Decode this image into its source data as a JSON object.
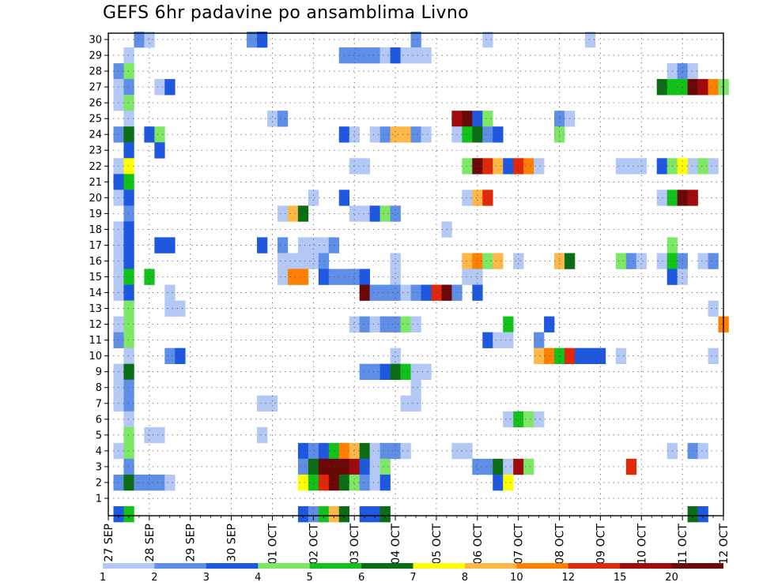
{
  "chart_data": {
    "type": "heatmap",
    "title": "GEFS 6hr padavine po ansamblima Livno",
    "xlabel": "",
    "ylabel": "",
    "x_tick_labels": [
      "27 SEP",
      "28 SEP",
      "29 SEP",
      "30 SEP",
      "01 OCT",
      "02 OCT",
      "03 OCT",
      "04 OCT",
      "05 OCT",
      "06 OCT",
      "07 OCT",
      "08 OCT",
      "09 OCT",
      "10 OCT",
      "11 OCT",
      "12 OCT"
    ],
    "y_tick_labels": [
      "1",
      "2",
      "3",
      "4",
      "5",
      "6",
      "7",
      "8",
      "9",
      "10",
      "11",
      "12",
      "13",
      "14",
      "15",
      "16",
      "17",
      "18",
      "19",
      "20",
      "21",
      "22",
      "23",
      "24",
      "25",
      "26",
      "27",
      "28",
      "29",
      "30"
    ],
    "time_step": "6hr",
    "x_range_steps": [
      0,
      60
    ],
    "y_range": [
      0,
      30
    ],
    "grid": true,
    "colorbar": {
      "levels": [
        "1",
        "2",
        "3",
        "4",
        "5",
        "6",
        "7",
        "8",
        "10",
        "12",
        "15",
        "20"
      ],
      "colors": [
        "#b3c8f5",
        "#5f8ee6",
        "#1e57e0",
        "#7ee866",
        "#12c21a",
        "#0c6e14",
        "#ffff00",
        "#ffb748",
        "#ff7f00",
        "#e0280a",
        "#a00a0a",
        "#6a0808"
      ]
    },
    "cells": [
      [
        30,
        3,
        1
      ],
      [
        30,
        4,
        0
      ],
      [
        30,
        14,
        1
      ],
      [
        30,
        15,
        2
      ],
      [
        30,
        30,
        1
      ],
      [
        30,
        37,
        0
      ],
      [
        30,
        47,
        0
      ],
      [
        29,
        2,
        0
      ],
      [
        29,
        23,
        1
      ],
      [
        29,
        24,
        1
      ],
      [
        29,
        25,
        1
      ],
      [
        29,
        26,
        1
      ],
      [
        29,
        27,
        0
      ],
      [
        29,
        28,
        2
      ],
      [
        29,
        29,
        0
      ],
      [
        29,
        30,
        0
      ],
      [
        29,
        31,
        0
      ],
      [
        28,
        1,
        1
      ],
      [
        28,
        2,
        3
      ],
      [
        28,
        55,
        0
      ],
      [
        28,
        56,
        1
      ],
      [
        28,
        57,
        0
      ],
      [
        27,
        1,
        0
      ],
      [
        27,
        2,
        1
      ],
      [
        27,
        5,
        0
      ],
      [
        27,
        6,
        2
      ],
      [
        27,
        54,
        5
      ],
      [
        27,
        55,
        4
      ],
      [
        27,
        56,
        4
      ],
      [
        27,
        57,
        11
      ],
      [
        27,
        58,
        10
      ],
      [
        27,
        59,
        8
      ],
      [
        27,
        60,
        3
      ],
      [
        26,
        1,
        0
      ],
      [
        26,
        2,
        3
      ],
      [
        25,
        2,
        0
      ],
      [
        25,
        16,
        0
      ],
      [
        25,
        17,
        1
      ],
      [
        25,
        34,
        10
      ],
      [
        25,
        35,
        11
      ],
      [
        25,
        36,
        2
      ],
      [
        25,
        37,
        3
      ],
      [
        25,
        44,
        1
      ],
      [
        25,
        45,
        0
      ],
      [
        24,
        1,
        1
      ],
      [
        24,
        2,
        5
      ],
      [
        24,
        4,
        2
      ],
      [
        24,
        5,
        3
      ],
      [
        24,
        23,
        2
      ],
      [
        24,
        24,
        0
      ],
      [
        24,
        26,
        0
      ],
      [
        24,
        27,
        1
      ],
      [
        24,
        28,
        7
      ],
      [
        24,
        29,
        7
      ],
      [
        24,
        30,
        1
      ],
      [
        24,
        31,
        0
      ],
      [
        24,
        34,
        0
      ],
      [
        24,
        35,
        4
      ],
      [
        24,
        36,
        5
      ],
      [
        24,
        37,
        1
      ],
      [
        24,
        38,
        2
      ],
      [
        24,
        44,
        3
      ],
      [
        23,
        2,
        2
      ],
      [
        23,
        5,
        2
      ],
      [
        22,
        1,
        0
      ],
      [
        22,
        2,
        6
      ],
      [
        22,
        24,
        0
      ],
      [
        22,
        25,
        0
      ],
      [
        22,
        35,
        3
      ],
      [
        22,
        36,
        11
      ],
      [
        22,
        37,
        9
      ],
      [
        22,
        38,
        7
      ],
      [
        22,
        39,
        2
      ],
      [
        22,
        40,
        9
      ],
      [
        22,
        41,
        8
      ],
      [
        22,
        42,
        0
      ],
      [
        22,
        50,
        0
      ],
      [
        22,
        51,
        0
      ],
      [
        22,
        52,
        0
      ],
      [
        22,
        54,
        2
      ],
      [
        22,
        55,
        3
      ],
      [
        22,
        56,
        6
      ],
      [
        22,
        57,
        0
      ],
      [
        22,
        58,
        3
      ],
      [
        22,
        59,
        0
      ],
      [
        21,
        1,
        2
      ],
      [
        21,
        2,
        4
      ],
      [
        20,
        1,
        0
      ],
      [
        20,
        2,
        2
      ],
      [
        20,
        20,
        0
      ],
      [
        20,
        23,
        2
      ],
      [
        20,
        35,
        0
      ],
      [
        20,
        36,
        7
      ],
      [
        20,
        37,
        9
      ],
      [
        20,
        54,
        0
      ],
      [
        20,
        55,
        4
      ],
      [
        20,
        56,
        11
      ],
      [
        20,
        57,
        10
      ],
      [
        19,
        2,
        1
      ],
      [
        19,
        17,
        0
      ],
      [
        19,
        18,
        7
      ],
      [
        19,
        19,
        5
      ],
      [
        19,
        24,
        0
      ],
      [
        19,
        25,
        0
      ],
      [
        19,
        26,
        2
      ],
      [
        19,
        27,
        3
      ],
      [
        19,
        28,
        1
      ],
      [
        18,
        1,
        0
      ],
      [
        18,
        2,
        2
      ],
      [
        18,
        33,
        0
      ],
      [
        17,
        1,
        0
      ],
      [
        17,
        2,
        2
      ],
      [
        17,
        5,
        2
      ],
      [
        17,
        6,
        2
      ],
      [
        17,
        15,
        2
      ],
      [
        17,
        17,
        1
      ],
      [
        17,
        19,
        0
      ],
      [
        17,
        20,
        0
      ],
      [
        17,
        21,
        0
      ],
      [
        17,
        22,
        1
      ],
      [
        17,
        55,
        3
      ],
      [
        16,
        1,
        0
      ],
      [
        16,
        2,
        2
      ],
      [
        16,
        17,
        0
      ],
      [
        16,
        18,
        0
      ],
      [
        16,
        19,
        0
      ],
      [
        16,
        20,
        0
      ],
      [
        16,
        21,
        1
      ],
      [
        16,
        28,
        0
      ],
      [
        16,
        35,
        7
      ],
      [
        16,
        36,
        8
      ],
      [
        16,
        37,
        3
      ],
      [
        16,
        38,
        7
      ],
      [
        16,
        40,
        0
      ],
      [
        16,
        44,
        7
      ],
      [
        16,
        45,
        5
      ],
      [
        16,
        50,
        3
      ],
      [
        16,
        51,
        1
      ],
      [
        16,
        52,
        0
      ],
      [
        16,
        54,
        0
      ],
      [
        16,
        55,
        4
      ],
      [
        16,
        56,
        1
      ],
      [
        16,
        58,
        0
      ],
      [
        16,
        59,
        1
      ],
      [
        15,
        1,
        0
      ],
      [
        15,
        2,
        4
      ],
      [
        15,
        4,
        4
      ],
      [
        15,
        17,
        0
      ],
      [
        15,
        18,
        8
      ],
      [
        15,
        19,
        8
      ],
      [
        15,
        21,
        2
      ],
      [
        15,
        22,
        1
      ],
      [
        15,
        23,
        1
      ],
      [
        15,
        24,
        1
      ],
      [
        15,
        25,
        2
      ],
      [
        15,
        28,
        0
      ],
      [
        15,
        35,
        0
      ],
      [
        15,
        36,
        0
      ],
      [
        15,
        55,
        2
      ],
      [
        15,
        56,
        0
      ],
      [
        14,
        1,
        0
      ],
      [
        14,
        2,
        2
      ],
      [
        14,
        6,
        0
      ],
      [
        14,
        25,
        11
      ],
      [
        14,
        26,
        1
      ],
      [
        14,
        27,
        1
      ],
      [
        14,
        28,
        1
      ],
      [
        14,
        29,
        0
      ],
      [
        14,
        30,
        1
      ],
      [
        14,
        31,
        2
      ],
      [
        14,
        32,
        9
      ],
      [
        14,
        33,
        11
      ],
      [
        14,
        34,
        1
      ],
      [
        14,
        36,
        2
      ],
      [
        13,
        2,
        3
      ],
      [
        13,
        6,
        0
      ],
      [
        13,
        7,
        0
      ],
      [
        13,
        59,
        0
      ],
      [
        12,
        1,
        0
      ],
      [
        12,
        2,
        3
      ],
      [
        12,
        24,
        0
      ],
      [
        12,
        25,
        1
      ],
      [
        12,
        26,
        0
      ],
      [
        12,
        27,
        1
      ],
      [
        12,
        28,
        1
      ],
      [
        12,
        29,
        3
      ],
      [
        12,
        30,
        0
      ],
      [
        12,
        39,
        4
      ],
      [
        12,
        43,
        2
      ],
      [
        12,
        60,
        8
      ],
      [
        11,
        1,
        1
      ],
      [
        11,
        2,
        3
      ],
      [
        11,
        37,
        2
      ],
      [
        11,
        38,
        0
      ],
      [
        11,
        39,
        0
      ],
      [
        11,
        42,
        1
      ],
      [
        10,
        2,
        0
      ],
      [
        10,
        6,
        1
      ],
      [
        10,
        7,
        2
      ],
      [
        10,
        28,
        0
      ],
      [
        10,
        42,
        7
      ],
      [
        10,
        43,
        8
      ],
      [
        10,
        44,
        4
      ],
      [
        10,
        45,
        9
      ],
      [
        10,
        46,
        2
      ],
      [
        10,
        47,
        2
      ],
      [
        10,
        48,
        2
      ],
      [
        10,
        50,
        0
      ],
      [
        10,
        59,
        0
      ],
      [
        9,
        1,
        0
      ],
      [
        9,
        2,
        5
      ],
      [
        9,
        25,
        1
      ],
      [
        9,
        26,
        1
      ],
      [
        9,
        27,
        2
      ],
      [
        9,
        28,
        5
      ],
      [
        9,
        29,
        4
      ],
      [
        9,
        30,
        0
      ],
      [
        9,
        31,
        0
      ],
      [
        8,
        1,
        0
      ],
      [
        8,
        2,
        1
      ],
      [
        8,
        30,
        0
      ],
      [
        7,
        1,
        0
      ],
      [
        7,
        2,
        1
      ],
      [
        7,
        15,
        0
      ],
      [
        7,
        16,
        0
      ],
      [
        7,
        29,
        0
      ],
      [
        7,
        30,
        0
      ],
      [
        6,
        2,
        0
      ],
      [
        6,
        39,
        0
      ],
      [
        6,
        40,
        4
      ],
      [
        6,
        41,
        3
      ],
      [
        6,
        42,
        0
      ],
      [
        5,
        2,
        3
      ],
      [
        5,
        4,
        0
      ],
      [
        5,
        5,
        0
      ],
      [
        5,
        15,
        0
      ],
      [
        4,
        1,
        0
      ],
      [
        4,
        2,
        3
      ],
      [
        4,
        19,
        2
      ],
      [
        4,
        20,
        1
      ],
      [
        4,
        21,
        2
      ],
      [
        4,
        22,
        4
      ],
      [
        4,
        23,
        8
      ],
      [
        4,
        24,
        7
      ],
      [
        4,
        25,
        5
      ],
      [
        4,
        26,
        0
      ],
      [
        4,
        27,
        1
      ],
      [
        4,
        28,
        1
      ],
      [
        4,
        29,
        0
      ],
      [
        4,
        34,
        0
      ],
      [
        4,
        35,
        0
      ],
      [
        4,
        55,
        0
      ],
      [
        4,
        57,
        1
      ],
      [
        4,
        58,
        0
      ],
      [
        3,
        2,
        1
      ],
      [
        3,
        19,
        1
      ],
      [
        3,
        20,
        5
      ],
      [
        3,
        21,
        11
      ],
      [
        3,
        22,
        11
      ],
      [
        3,
        23,
        11
      ],
      [
        3,
        24,
        10
      ],
      [
        3,
        25,
        2
      ],
      [
        3,
        26,
        0
      ],
      [
        3,
        27,
        3
      ],
      [
        3,
        36,
        1
      ],
      [
        3,
        37,
        1
      ],
      [
        3,
        38,
        5
      ],
      [
        3,
        39,
        0
      ],
      [
        3,
        40,
        10
      ],
      [
        3,
        41,
        3
      ],
      [
        3,
        51,
        9
      ],
      [
        2,
        1,
        1
      ],
      [
        2,
        2,
        5
      ],
      [
        2,
        3,
        1
      ],
      [
        2,
        4,
        1
      ],
      [
        2,
        5,
        1
      ],
      [
        2,
        6,
        0
      ],
      [
        2,
        19,
        6
      ],
      [
        2,
        20,
        4
      ],
      [
        2,
        21,
        9
      ],
      [
        2,
        22,
        11
      ],
      [
        2,
        23,
        5
      ],
      [
        2,
        24,
        3
      ],
      [
        2,
        25,
        1
      ],
      [
        2,
        26,
        0
      ],
      [
        2,
        27,
        2
      ],
      [
        2,
        38,
        2
      ],
      [
        2,
        39,
        6
      ],
      [
        0,
        1,
        2
      ],
      [
        0,
        2,
        4
      ],
      [
        0,
        19,
        2
      ],
      [
        0,
        20,
        1
      ],
      [
        0,
        21,
        4
      ],
      [
        0,
        22,
        7
      ],
      [
        0,
        23,
        5
      ],
      [
        0,
        25,
        2
      ],
      [
        0,
        26,
        2
      ],
      [
        0,
        27,
        5
      ],
      [
        0,
        57,
        5
      ],
      [
        0,
        58,
        2
      ]
    ]
  }
}
